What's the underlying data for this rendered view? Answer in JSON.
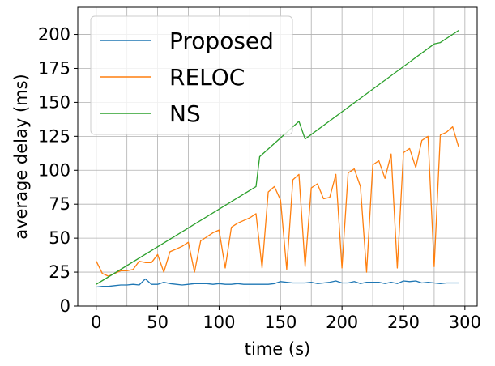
{
  "chart_data": {
    "type": "line",
    "title": "",
    "xlabel": "time (s)",
    "ylabel": "average delay (ms)",
    "xlim": [
      -15,
      310
    ],
    "ylim": [
      0,
      220
    ],
    "xticks": [
      0,
      50,
      100,
      150,
      200,
      250,
      300
    ],
    "yticks": [
      0,
      25,
      50,
      75,
      100,
      125,
      150,
      175,
      200
    ],
    "xtick_labels": [
      "0",
      "50",
      "100",
      "150",
      "200",
      "250",
      "300"
    ],
    "ytick_labels": [
      "0",
      "25",
      "50",
      "75",
      "100",
      "125",
      "150",
      "175",
      "200"
    ],
    "grid": true,
    "grid_minor_x": true,
    "legend_position": "top-left",
    "series": [
      {
        "name": "Proposed",
        "color": "#1f77b4",
        "x": [
          0,
          5,
          10,
          15,
          20,
          25,
          30,
          35,
          40,
          45,
          50,
          55,
          60,
          65,
          70,
          75,
          80,
          85,
          90,
          95,
          100,
          105,
          110,
          115,
          120,
          125,
          130,
          135,
          140,
          145,
          150,
          155,
          160,
          165,
          170,
          175,
          180,
          185,
          190,
          195,
          200,
          205,
          210,
          215,
          220,
          225,
          230,
          235,
          240,
          245,
          250,
          255,
          260,
          265,
          270,
          275,
          280,
          285,
          290,
          295
        ],
        "values": [
          14,
          14.5,
          14.5,
          15,
          15.5,
          15.5,
          16,
          15.5,
          20,
          16,
          16,
          17.5,
          16.5,
          16,
          15.5,
          16,
          16.5,
          16.5,
          16.5,
          16,
          16.5,
          16,
          16,
          16.5,
          16,
          16,
          16,
          16,
          16,
          16.5,
          18,
          17.5,
          17,
          17,
          17,
          17.5,
          16.5,
          17,
          17.5,
          18.5,
          17,
          17,
          18,
          16.5,
          17.5,
          17.5,
          17.5,
          16.5,
          17.5,
          16.5,
          18.5,
          18,
          18.5,
          17,
          17.5,
          17,
          16.5,
          17,
          17,
          17
        ]
      },
      {
        "name": "RELOC",
        "color": "#ff7f0e",
        "x": [
          0,
          5,
          10,
          15,
          20,
          25,
          30,
          35,
          40,
          45,
          50,
          55,
          60,
          65,
          70,
          75,
          80,
          85,
          90,
          95,
          100,
          105,
          110,
          115,
          120,
          125,
          130,
          135,
          140,
          145,
          150,
          155,
          160,
          165,
          170,
          175,
          180,
          185,
          190,
          195,
          200,
          205,
          210,
          215,
          220,
          225,
          230,
          235,
          240,
          245,
          250,
          255,
          260,
          265,
          270,
          275,
          280,
          285,
          290,
          295
        ],
        "values": [
          33,
          24,
          22,
          24,
          26,
          26,
          27,
          33,
          32,
          32,
          38,
          25,
          40,
          42,
          44,
          47,
          25,
          48,
          51,
          54,
          56,
          28,
          58,
          61,
          63,
          65,
          68,
          28,
          84,
          88,
          78,
          27,
          93,
          97,
          29,
          87,
          90,
          79,
          80,
          97,
          28,
          98,
          101,
          88,
          25,
          104,
          107,
          94,
          112,
          28,
          113,
          116,
          102,
          122,
          125,
          29,
          126,
          128,
          132,
          117
        ]
      },
      {
        "name": "NS",
        "color": "#2ca02c",
        "x": [
          0,
          130,
          133,
          165,
          170,
          275,
          280,
          295
        ],
        "values": [
          16,
          88,
          110,
          136,
          123,
          193,
          194,
          203
        ]
      }
    ]
  }
}
